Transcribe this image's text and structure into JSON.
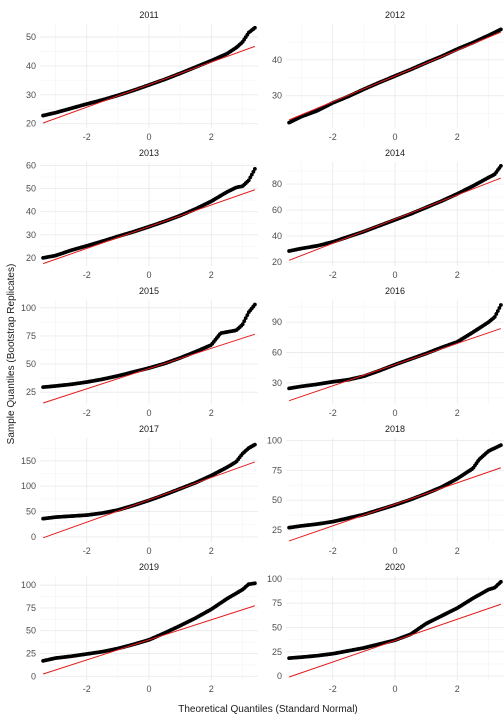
{
  "chart_data": {
    "type": "scatter",
    "xlabel": "Theoretical Quantiles (Standard Normal)",
    "ylabel": "Sample Quantiles (Bootstrap Replicates)",
    "xlim": [
      -3.5,
      3.5
    ],
    "xticks": [
      -2,
      0,
      2
    ],
    "point_color": "#000000",
    "line_color": "#e41a1c",
    "grid": true,
    "panels": [
      {
        "title": "2011",
        "ylim": [
          18.5,
          54.5
        ],
        "yticks": [
          20,
          30,
          40,
          50
        ],
        "line": {
          "intercept": 33.5,
          "slope": 3.9
        },
        "qq": [
          [
            -3.4,
            22.8
          ],
          [
            -3,
            23.8
          ],
          [
            -2.5,
            25.3
          ],
          [
            -2,
            26.8
          ],
          [
            -1.5,
            28.2
          ],
          [
            -1,
            29.8
          ],
          [
            -0.5,
            31.5
          ],
          [
            0,
            33.4
          ],
          [
            0.5,
            35.3
          ],
          [
            1,
            37.4
          ],
          [
            1.5,
            39.6
          ],
          [
            2,
            41.8
          ],
          [
            2.5,
            44.2
          ],
          [
            2.8,
            46.3
          ],
          [
            3.0,
            48.2
          ],
          [
            3.2,
            51.5
          ],
          [
            3.4,
            53.2
          ]
        ]
      },
      {
        "title": "2012",
        "ylim": [
          21,
          50
        ],
        "yticks": [
          30,
          40
        ],
        "line": {
          "intercept": 35.5,
          "slope": 3.6
        },
        "qq": [
          [
            -3.4,
            22.5
          ],
          [
            -3,
            24.2
          ],
          [
            -2.5,
            25.8
          ],
          [
            -2,
            28.0
          ],
          [
            -1.5,
            29.8
          ],
          [
            -1,
            31.8
          ],
          [
            -0.5,
            33.7
          ],
          [
            0,
            35.5
          ],
          [
            0.5,
            37.3
          ],
          [
            1,
            39.2
          ],
          [
            1.5,
            41.0
          ],
          [
            2,
            43.0
          ],
          [
            2.5,
            44.8
          ],
          [
            3.0,
            46.8
          ],
          [
            3.4,
            48.5
          ]
        ]
      },
      {
        "title": "2013",
        "ylim": [
          16.5,
          61.5
        ],
        "yticks": [
          20,
          30,
          40,
          50,
          60
        ],
        "line": {
          "intercept": 33.5,
          "slope": 4.7
        },
        "qq": [
          [
            -3.4,
            20.0
          ],
          [
            -3,
            21.0
          ],
          [
            -2.5,
            23.3
          ],
          [
            -2,
            25.2
          ],
          [
            -1.5,
            27.2
          ],
          [
            -1,
            29.3
          ],
          [
            -0.5,
            31.3
          ],
          [
            0,
            33.5
          ],
          [
            0.5,
            35.8
          ],
          [
            1,
            38.3
          ],
          [
            1.5,
            41.2
          ],
          [
            2,
            44.5
          ],
          [
            2.5,
            48.5
          ],
          [
            2.8,
            50.5
          ],
          [
            3.0,
            51.0
          ],
          [
            3.2,
            53.5
          ],
          [
            3.4,
            58.5
          ]
        ]
      },
      {
        "title": "2014",
        "ylim": [
          17,
          97
        ],
        "yticks": [
          20,
          40,
          60,
          80
        ],
        "line": {
          "intercept": 53,
          "slope": 9.3
        },
        "qq": [
          [
            -3.4,
            28.5
          ],
          [
            -3,
            30.5
          ],
          [
            -2.5,
            32.5
          ],
          [
            -2,
            35.5
          ],
          [
            -1.5,
            39.5
          ],
          [
            -1,
            43.5
          ],
          [
            -0.5,
            48.0
          ],
          [
            0,
            52.5
          ],
          [
            0.5,
            57.0
          ],
          [
            1,
            62.0
          ],
          [
            1.5,
            67.0
          ],
          [
            2,
            72.5
          ],
          [
            2.5,
            78.5
          ],
          [
            3.0,
            85.0
          ],
          [
            3.2,
            87.5
          ],
          [
            3.4,
            94.0
          ]
        ]
      },
      {
        "title": "2015",
        "ylim": [
          14.5,
          107
        ],
        "yticks": [
          25,
          50,
          75,
          100
        ],
        "line": {
          "intercept": 46,
          "slope": 9.0
        },
        "qq": [
          [
            -3.4,
            29.5
          ],
          [
            -3,
            30.5
          ],
          [
            -2.5,
            32.0
          ],
          [
            -2,
            34.0
          ],
          [
            -1.5,
            36.5
          ],
          [
            -1,
            39.5
          ],
          [
            -0.5,
            43.0
          ],
          [
            0,
            46.5
          ],
          [
            0.5,
            50.5
          ],
          [
            1,
            55.5
          ],
          [
            1.5,
            61.0
          ],
          [
            2,
            67.0
          ],
          [
            2.3,
            77.5
          ],
          [
            2.8,
            80.0
          ],
          [
            3.0,
            85.0
          ],
          [
            3.2,
            96.0
          ],
          [
            3.4,
            103.0
          ]
        ]
      },
      {
        "title": "2016",
        "ylim": [
          9,
          112
        ],
        "yticks": [
          30,
          60,
          90
        ],
        "line": {
          "intercept": 48,
          "slope": 10.5
        },
        "qq": [
          [
            -3.4,
            24.5
          ],
          [
            -3,
            26.5
          ],
          [
            -2.5,
            28.5
          ],
          [
            -2,
            31.0
          ],
          [
            -1.5,
            33.0
          ],
          [
            -1,
            36.5
          ],
          [
            -0.5,
            42.0
          ],
          [
            0,
            48.0
          ],
          [
            0.5,
            53.5
          ],
          [
            1,
            59.0
          ],
          [
            1.5,
            65.0
          ],
          [
            2,
            70.5
          ],
          [
            2.5,
            80.0
          ],
          [
            3.0,
            90.0
          ],
          [
            3.2,
            95.0
          ],
          [
            3.4,
            107.0
          ]
        ]
      },
      {
        "title": "2017",
        "ylim": [
          -10,
          195
        ],
        "yticks": [
          0,
          50,
          100,
          150
        ],
        "line": {
          "intercept": 73,
          "slope": 22.0
        },
        "qq": [
          [
            -3.4,
            36.0
          ],
          [
            -3,
            39.0
          ],
          [
            -2.5,
            41.0
          ],
          [
            -2,
            43.0
          ],
          [
            -1.5,
            47.0
          ],
          [
            -1,
            53.0
          ],
          [
            -0.5,
            62.0
          ],
          [
            0,
            72.0
          ],
          [
            0.5,
            83.0
          ],
          [
            1,
            95.0
          ],
          [
            1.5,
            107.0
          ],
          [
            2,
            121.0
          ],
          [
            2.5,
            137.0
          ],
          [
            2.8,
            148.0
          ],
          [
            3.0,
            164.0
          ],
          [
            3.2,
            175.0
          ],
          [
            3.4,
            182.0
          ]
        ]
      },
      {
        "title": "2018",
        "ylim": [
          15,
          102
        ],
        "yticks": [
          25,
          50,
          75,
          100
        ],
        "line": {
          "intercept": 46.5,
          "slope": 9.0
        },
        "qq": [
          [
            -3.4,
            27.0
          ],
          [
            -3,
            28.5
          ],
          [
            -2.5,
            30.0
          ],
          [
            -2,
            32.0
          ],
          [
            -1.5,
            35.0
          ],
          [
            -1,
            38.0
          ],
          [
            -0.5,
            42.0
          ],
          [
            0,
            46.0
          ],
          [
            0.5,
            50.5
          ],
          [
            1,
            55.5
          ],
          [
            1.5,
            61.0
          ],
          [
            2,
            68.0
          ],
          [
            2.5,
            76.5
          ],
          [
            2.7,
            84.0
          ],
          [
            3.0,
            91.0
          ],
          [
            3.4,
            96.0
          ]
        ]
      },
      {
        "title": "2019",
        "ylim": [
          -4,
          110
        ],
        "yticks": [
          0,
          25,
          50,
          75,
          100
        ],
        "line": {
          "intercept": 40,
          "slope": 11.0
        },
        "qq": [
          [
            -3.4,
            17.0
          ],
          [
            -3,
            20.0
          ],
          [
            -2.5,
            22.0
          ],
          [
            -2,
            24.5
          ],
          [
            -1.5,
            27.0
          ],
          [
            -1,
            30.5
          ],
          [
            -0.5,
            35.0
          ],
          [
            0,
            40.0
          ],
          [
            0.5,
            47.5
          ],
          [
            1,
            55.5
          ],
          [
            1.5,
            64.0
          ],
          [
            2,
            73.5
          ],
          [
            2.5,
            85.0
          ],
          [
            3.0,
            95.0
          ],
          [
            3.2,
            101.0
          ],
          [
            3.4,
            102.0
          ]
        ]
      },
      {
        "title": "2020",
        "ylim": [
          -4,
          103
        ],
        "yticks": [
          0,
          25,
          50,
          75,
          100
        ],
        "line": {
          "intercept": 36.5,
          "slope": 11.0
        },
        "qq": [
          [
            -3.4,
            18.5
          ],
          [
            -3,
            19.5
          ],
          [
            -2.5,
            21.0
          ],
          [
            -2,
            23.0
          ],
          [
            -1.5,
            26.0
          ],
          [
            -1,
            29.0
          ],
          [
            -0.5,
            33.0
          ],
          [
            0,
            37.0
          ],
          [
            0.5,
            43.0
          ],
          [
            1,
            54.0
          ],
          [
            1.5,
            62.0
          ],
          [
            2,
            70.0
          ],
          [
            2.5,
            80.0
          ],
          [
            3.0,
            89.0
          ],
          [
            3.2,
            91.0
          ],
          [
            3.4,
            97.0
          ]
        ]
      }
    ]
  }
}
